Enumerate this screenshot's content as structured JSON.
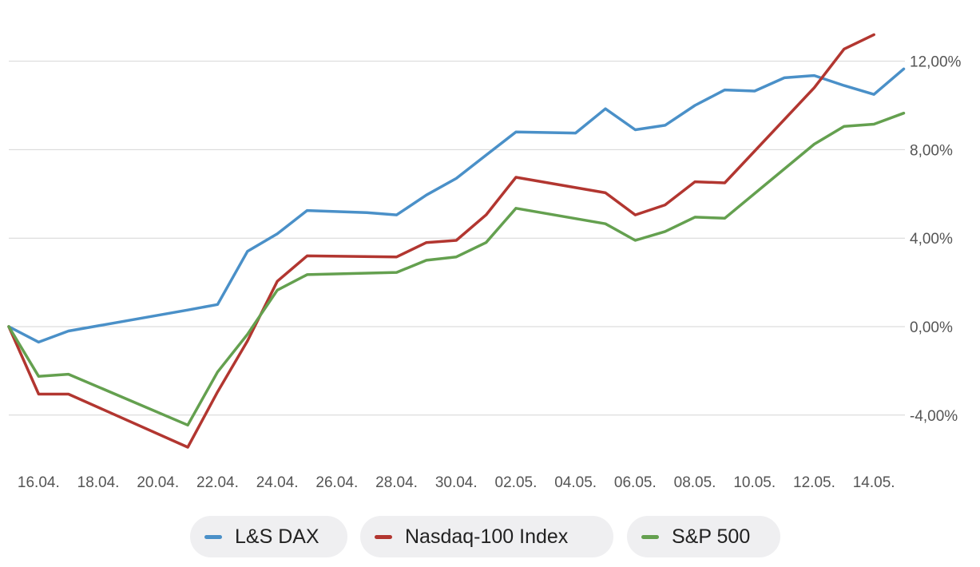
{
  "chart_data": {
    "type": "line",
    "x": [
      "15.04.",
      "16.04.",
      "17.04.",
      "18.04.",
      "19.04.",
      "20.04.",
      "21.04.",
      "22.04.",
      "23.04.",
      "24.04.",
      "25.04.",
      "26.04.",
      "27.04.",
      "28.04.",
      "29.04.",
      "30.04.",
      "01.05.",
      "02.05.",
      "03.05.",
      "04.05.",
      "05.05.",
      "06.05.",
      "07.05.",
      "08.05.",
      "09.05.",
      "10.05.",
      "11.05.",
      "12.05.",
      "13.05.",
      "14.05.",
      "15.05."
    ],
    "x_tick_labels": [
      "16.04.",
      "18.04.",
      "20.04.",
      "22.04.",
      "24.04.",
      "26.04.",
      "28.04.",
      "30.04.",
      "02.05.",
      "04.05.",
      "06.05.",
      "08.05.",
      "10.05.",
      "12.05.",
      "14.05."
    ],
    "y_ticks": [
      {
        "value": -4,
        "label": "-4,00%"
      },
      {
        "value": 0,
        "label": "0,00%"
      },
      {
        "value": 4,
        "label": "4,00%"
      },
      {
        "value": 8,
        "label": "8,00%"
      },
      {
        "value": 12,
        "label": "12,00%"
      }
    ],
    "ylim": [
      -5.8,
      13.5
    ],
    "grid": true,
    "legend_position": "bottom",
    "series": [
      {
        "name": "L&S DAX",
        "color": "#4a90c8",
        "values": [
          0.0,
          -0.7,
          -0.2,
          null,
          null,
          null,
          0.75,
          1.0,
          3.4,
          4.2,
          5.25,
          null,
          5.15,
          5.05,
          5.95,
          6.7,
          7.75,
          8.8,
          null,
          8.75,
          9.85,
          8.9,
          9.1,
          10.0,
          10.7,
          10.65,
          11.25,
          11.35,
          10.9,
          10.5,
          11.65
        ]
      },
      {
        "name": "Nasdaq-100 Index",
        "color": "#b23630",
        "values": [
          0.0,
          -3.05,
          -3.05,
          null,
          null,
          null,
          -5.45,
          -2.95,
          -0.65,
          2.05,
          3.2,
          null,
          null,
          3.15,
          3.8,
          3.9,
          5.05,
          6.75,
          null,
          null,
          6.05,
          5.05,
          5.5,
          6.55,
          6.5,
          null,
          null,
          10.8,
          12.55,
          13.2,
          null
        ]
      },
      {
        "name": "S&P 500",
        "color": "#64a04f",
        "values": [
          0.0,
          -2.25,
          -2.15,
          null,
          null,
          null,
          -4.45,
          -2.05,
          -0.35,
          1.65,
          2.35,
          null,
          null,
          2.45,
          3.0,
          3.15,
          3.8,
          5.35,
          null,
          null,
          4.65,
          3.9,
          4.3,
          4.95,
          4.9,
          null,
          null,
          8.25,
          9.05,
          9.15,
          9.65
        ]
      }
    ]
  }
}
